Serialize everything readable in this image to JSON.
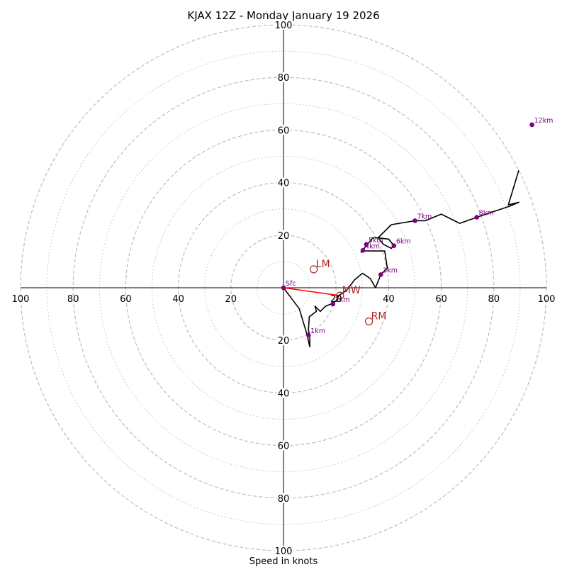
{
  "chart_data": {
    "type": "hodograph",
    "title": "KJAX 12Z - Monday January 19 2026",
    "xlabel": "Speed in knots",
    "units": "knots",
    "max_speed": 100,
    "ring_major": [
      20,
      40,
      60,
      80,
      100
    ],
    "ring_minor": [
      10,
      30,
      50,
      70,
      90
    ],
    "x_tick_labels": [
      "100",
      "80",
      "60",
      "40",
      "20",
      "20",
      "40",
      "60",
      "80",
      "100"
    ],
    "x_tick_values": [
      -100,
      -80,
      -60,
      -40,
      -20,
      20,
      40,
      60,
      80,
      100
    ],
    "y_tick_labels": [
      "100",
      "80",
      "60",
      "40",
      "20",
      "20",
      "40",
      "60",
      "80",
      "100"
    ],
    "y_tick_values": [
      100,
      80,
      60,
      40,
      20,
      -20,
      -40,
      -60,
      -80,
      -100
    ],
    "colors": {
      "hodograph_line": "#000000",
      "height_marker": "#800080",
      "storm_motion": "#b22222",
      "mean_wind_vector": "#ff0000",
      "grid": "#bdbdbd",
      "axes": "#000000"
    },
    "hodograph": [
      {
        "u": 0,
        "v": 0
      },
      {
        "u": 3,
        "v": -4
      },
      {
        "u": 6,
        "v": -8
      },
      {
        "u": 9,
        "v": -18
      },
      {
        "u": 10,
        "v": -22.5
      },
      {
        "u": 10,
        "v": -19
      },
      {
        "u": 9.5,
        "v": -16
      },
      {
        "u": 9.8,
        "v": -11
      },
      {
        "u": 12.5,
        "v": -9
      },
      {
        "u": 12,
        "v": -7
      },
      {
        "u": 14,
        "v": -9
      },
      {
        "u": 16,
        "v": -7
      },
      {
        "u": 18.5,
        "v": -6
      },
      {
        "u": 20,
        "v": -5
      },
      {
        "u": 21,
        "v": -3
      },
      {
        "u": 24,
        "v": -1
      },
      {
        "u": 27,
        "v": 3
      },
      {
        "u": 30,
        "v": 5.5
      },
      {
        "u": 33,
        "v": 3.5
      },
      {
        "u": 35,
        "v": 0
      },
      {
        "u": 37,
        "v": 5
      },
      {
        "u": 39.5,
        "v": 7.5
      },
      {
        "u": 38.5,
        "v": 14
      },
      {
        "u": 30,
        "v": 14
      },
      {
        "u": 29.5,
        "v": 13.5
      },
      {
        "u": 31.5,
        "v": 16
      },
      {
        "u": 34,
        "v": 19
      },
      {
        "u": 36,
        "v": 19
      },
      {
        "u": 40,
        "v": 18.5
      },
      {
        "u": 42,
        "v": 16
      },
      {
        "u": 41,
        "v": 15
      },
      {
        "u": 38,
        "v": 16.5
      },
      {
        "u": 36,
        "v": 19
      },
      {
        "u": 39,
        "v": 22
      },
      {
        "u": 41,
        "v": 24
      },
      {
        "u": 50,
        "v": 25.5
      },
      {
        "u": 54,
        "v": 25.5
      },
      {
        "u": 60,
        "v": 28
      },
      {
        "u": 67,
        "v": 24.5
      },
      {
        "u": 73.5,
        "v": 26.8
      },
      {
        "u": 80,
        "v": 29
      },
      {
        "u": 86,
        "v": 31
      },
      {
        "u": 89.5,
        "v": 32.5
      },
      {
        "u": 85.5,
        "v": 31.5
      },
      {
        "u": 92,
        "v": 53
      },
      {
        "u": 100,
        "v": 57.5
      }
    ],
    "hodograph_upper": [
      {
        "u": 92,
        "v": 64
      },
      {
        "u": 90.5,
        "v": 63
      },
      {
        "u": 94.5,
        "v": 62
      },
      {
        "u": 100,
        "v": 48
      }
    ],
    "height_markers": [
      {
        "label": "Sfc",
        "u": 0,
        "v": 0
      },
      {
        "label": "1km",
        "u": 9.5,
        "v": -18
      },
      {
        "label": "2km",
        "u": 18.8,
        "v": -6.2
      },
      {
        "label": "3km",
        "u": 37,
        "v": 5
      },
      {
        "label": "4km",
        "u": 30.2,
        "v": 14.2
      },
      {
        "label": "5km",
        "u": 31.5,
        "v": 16.5
      },
      {
        "label": "6km",
        "u": 42,
        "v": 16
      },
      {
        "label": "7km",
        "u": 50,
        "v": 25.5
      },
      {
        "label": "8km",
        "u": 73.5,
        "v": 26.8
      },
      {
        "label": "12km",
        "u": 94.5,
        "v": 62
      }
    ],
    "storm_motions": [
      {
        "label": "LM",
        "u": 11.5,
        "v": 7
      },
      {
        "label": "RM",
        "u": 32.5,
        "v": -12.8
      },
      {
        "label": "MW",
        "u": 21.5,
        "v": -3
      }
    ],
    "mean_wind_vector": {
      "u": 21.5,
      "v": -3
    }
  }
}
